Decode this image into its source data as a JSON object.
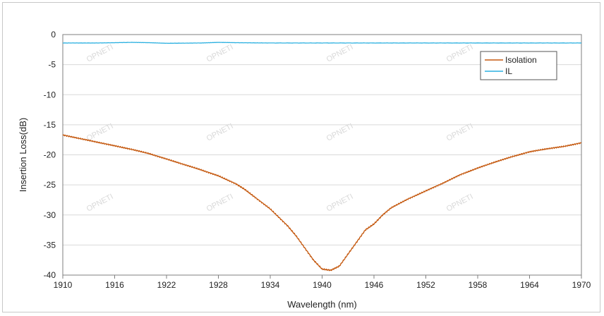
{
  "chart_data": {
    "type": "line",
    "title": "",
    "xlabel": "Wavelength (nm)",
    "ylabel": "Insertion Loss(dB)",
    "xlim": [
      1910,
      1970
    ],
    "ylim": [
      -40,
      0
    ],
    "xticks": [
      1910,
      1916,
      1922,
      1928,
      1934,
      1940,
      1946,
      1952,
      1958,
      1964,
      1970
    ],
    "yticks": [
      0,
      -5,
      -10,
      -15,
      -20,
      -25,
      -30,
      -35,
      -40
    ],
    "grid": true,
    "legend_position": "top-right",
    "watermark": "OPNETI",
    "series": [
      {
        "name": "Isolation",
        "color": "#c55a11",
        "x": [
          1910,
          1912,
          1914,
          1916,
          1918,
          1920,
          1922,
          1924,
          1926,
          1928,
          1930,
          1931,
          1932,
          1934,
          1936,
          1937,
          1938,
          1939,
          1940,
          1941,
          1942,
          1943,
          1944,
          1945,
          1946,
          1947,
          1948,
          1950,
          1952,
          1954,
          1956,
          1958,
          1960,
          1962,
          1964,
          1966,
          1968,
          1970
        ],
        "y": [
          -16.7,
          -17.3,
          -17.9,
          -18.5,
          -19.1,
          -19.8,
          -20.7,
          -21.6,
          -22.5,
          -23.5,
          -24.8,
          -25.7,
          -26.8,
          -29.0,
          -31.8,
          -33.5,
          -35.5,
          -37.5,
          -39.0,
          -39.2,
          -38.5,
          -36.5,
          -34.5,
          -32.5,
          -31.5,
          -30.0,
          -28.8,
          -27.3,
          -26.0,
          -24.7,
          -23.3,
          -22.2,
          -21.2,
          -20.3,
          -19.5,
          -19.0,
          -18.6,
          -18.0
        ]
      },
      {
        "name": "IL",
        "color": "#2bb0e0",
        "x": [
          1910,
          1914,
          1918,
          1920,
          1922,
          1926,
          1928,
          1930,
          1934,
          1940,
          1946,
          1952,
          1958,
          1964,
          1970
        ],
        "y": [
          -1.4,
          -1.4,
          -1.3,
          -1.35,
          -1.45,
          -1.4,
          -1.3,
          -1.35,
          -1.4,
          -1.4,
          -1.4,
          -1.4,
          -1.4,
          -1.4,
          -1.4
        ]
      }
    ]
  }
}
